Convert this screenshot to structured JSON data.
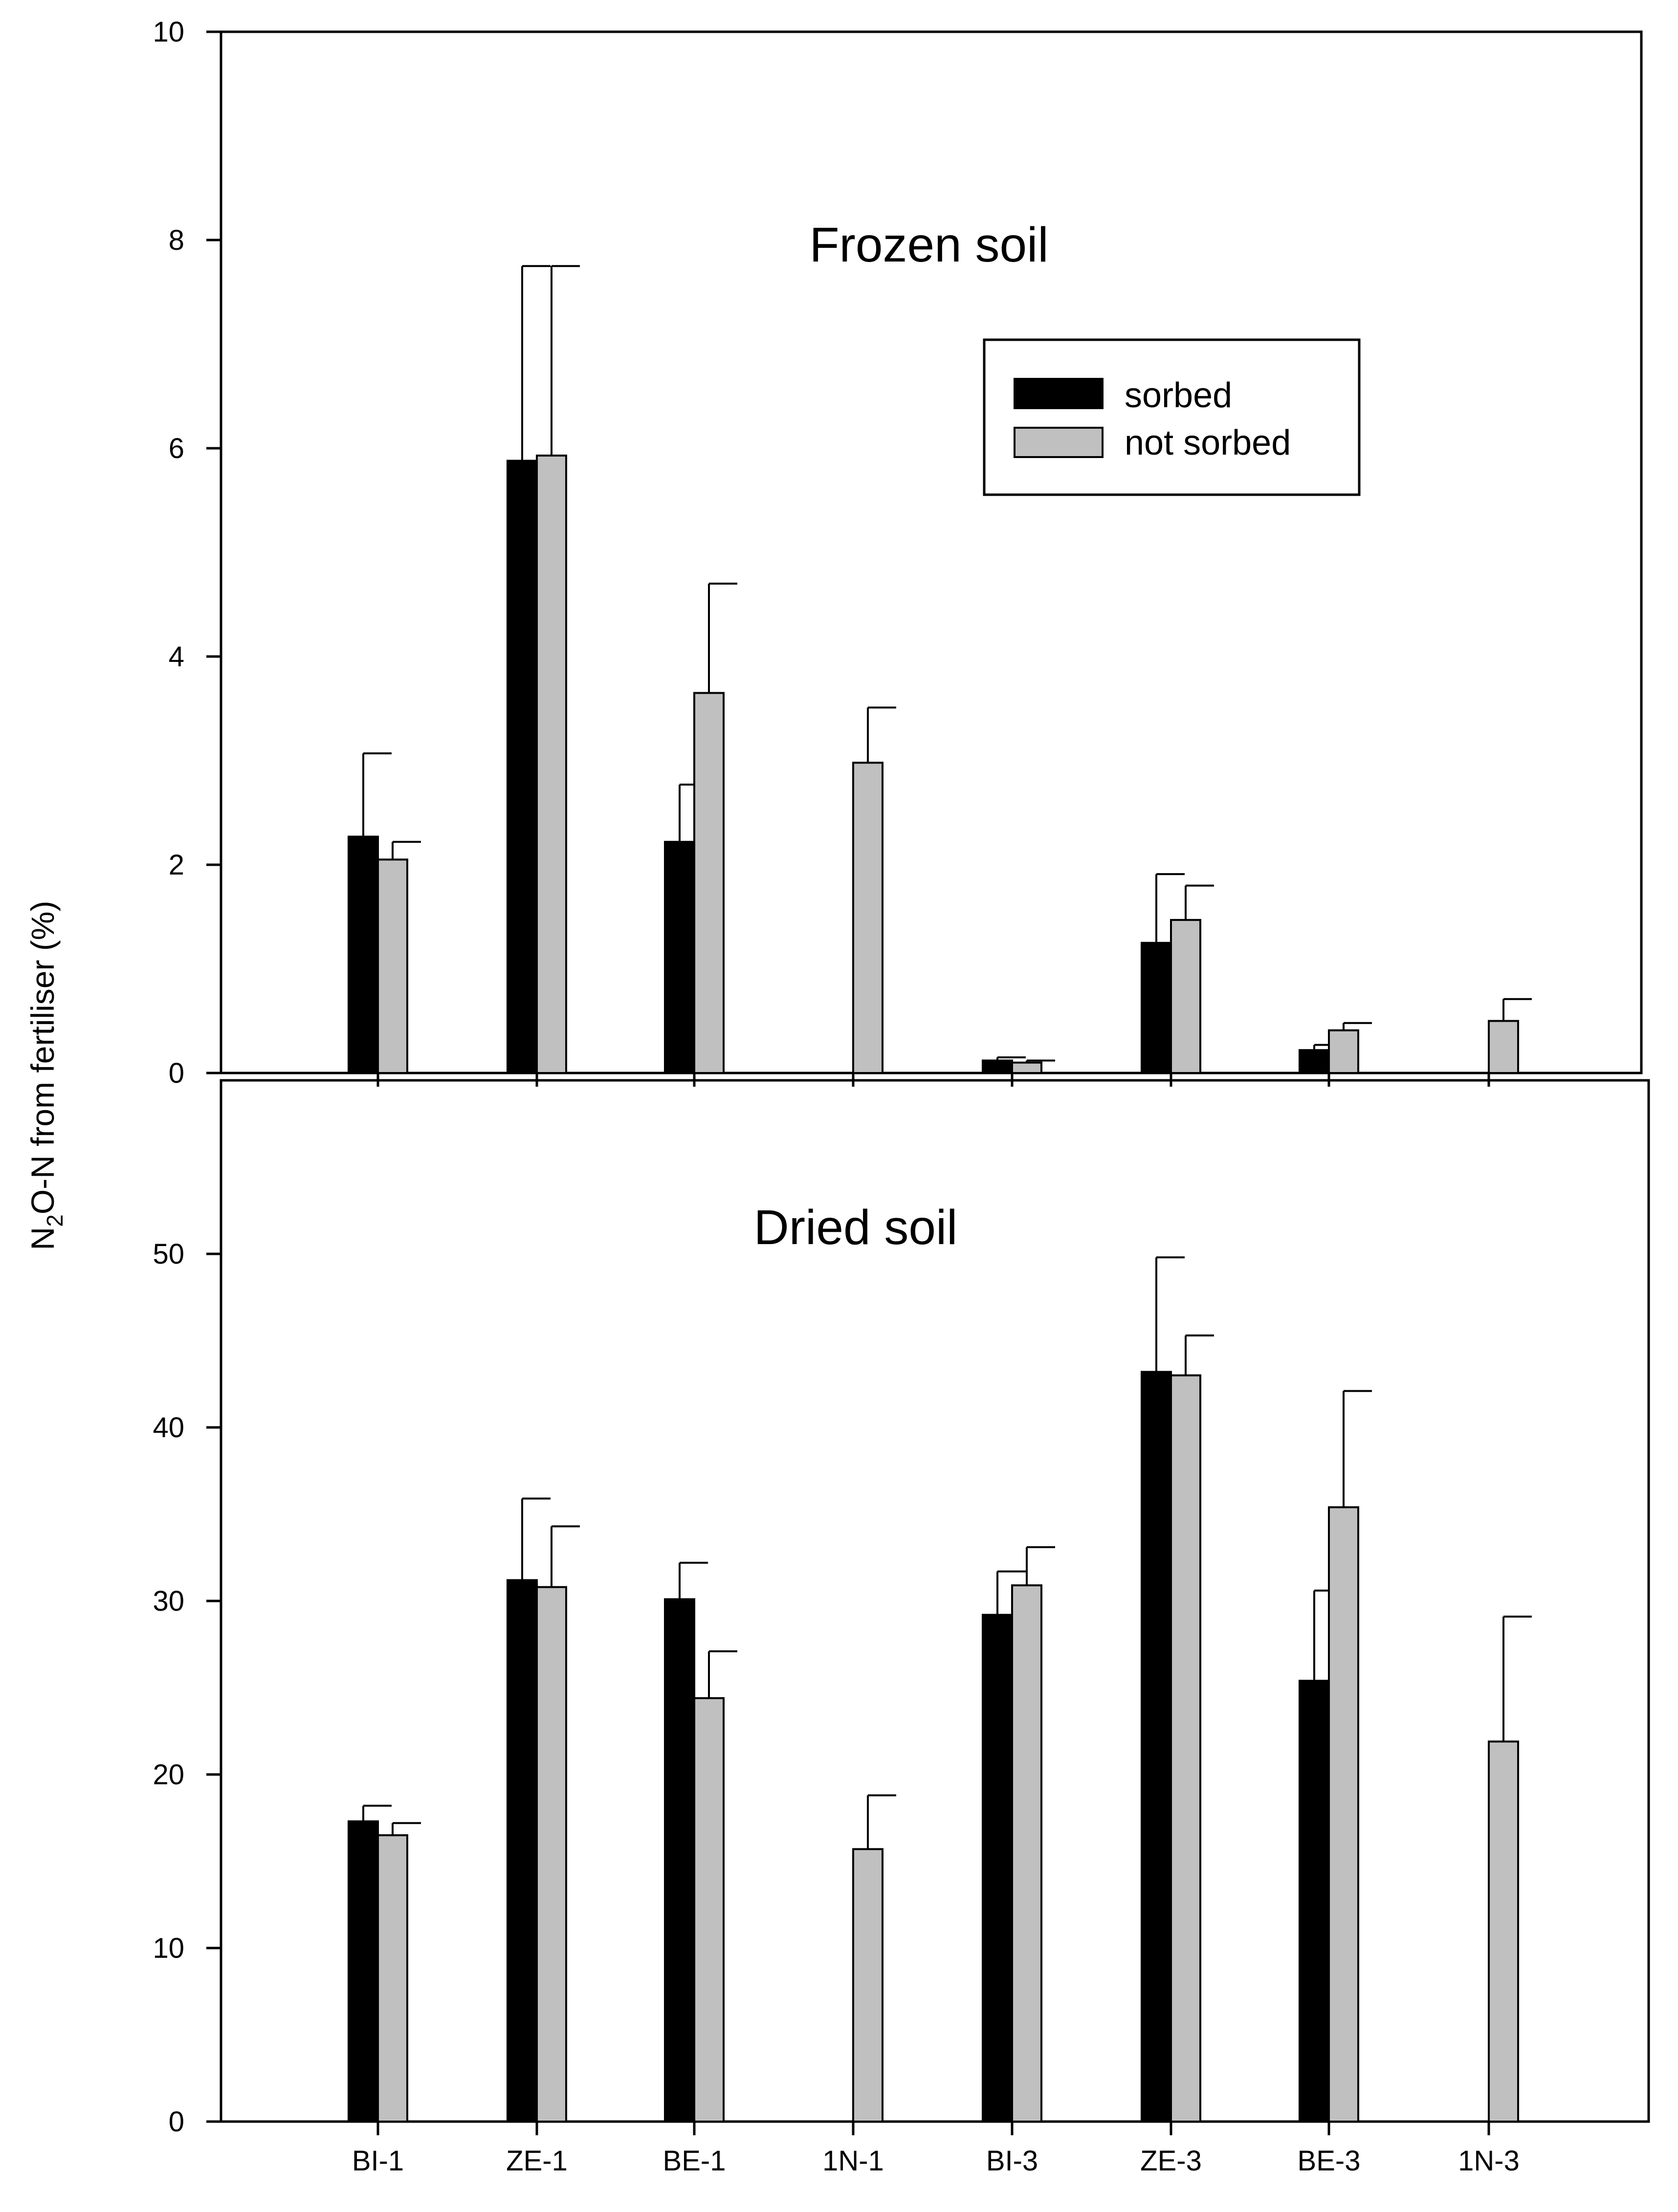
{
  "chart_data": [
    {
      "type": "bar",
      "title": "Frozen soil",
      "xlabel": "",
      "ylabel": "N2O-N from fertiliser (%)",
      "ylim": [
        0,
        10
      ],
      "yticks": [
        0,
        2,
        4,
        6,
        8,
        10
      ],
      "categories": [
        "BI-1",
        "ZE-1",
        "BE-1",
        "1N-1",
        "BI-3",
        "ZE-3",
        "BE-3",
        "1N-3"
      ],
      "series": [
        {
          "name": "sorbed",
          "color": "#000000",
          "values": [
            2.27,
            5.88,
            2.22,
            null,
            0.12,
            1.25,
            0.22,
            null
          ],
          "errors": [
            0.8,
            1.87,
            0.55,
            null,
            0.03,
            0.66,
            0.05,
            null
          ]
        },
        {
          "name": "not sorbed",
          "color": "#c0c0c0",
          "values": [
            2.05,
            5.93,
            3.65,
            2.98,
            0.1,
            1.47,
            0.41,
            0.5
          ],
          "errors": [
            0.17,
            1.82,
            1.05,
            0.53,
            0.02,
            0.33,
            0.07,
            0.21
          ]
        }
      ]
    },
    {
      "type": "bar",
      "title": "Dried soil",
      "xlabel": "",
      "ylabel": "N2O-N from fertiliser (%)",
      "ylim": [
        0,
        60
      ],
      "yticks": [
        0,
        10,
        20,
        30,
        40,
        50
      ],
      "categories": [
        "BI-1",
        "ZE-1",
        "BE-1",
        "1N-1",
        "BI-3",
        "ZE-3",
        "BE-3",
        "1N-3"
      ],
      "series": [
        {
          "name": "sorbed",
          "color": "#000000",
          "values": [
            17.3,
            31.2,
            30.1,
            null,
            29.2,
            43.2,
            25.4,
            null
          ],
          "errors": [
            0.9,
            4.7,
            2.1,
            null,
            2.5,
            6.6,
            5.2,
            null
          ]
        },
        {
          "name": "not sorbed",
          "color": "#c0c0c0",
          "values": [
            16.5,
            30.8,
            24.4,
            15.7,
            30.9,
            43.0,
            35.4,
            21.9
          ],
          "errors": [
            0.7,
            3.5,
            2.7,
            3.1,
            2.2,
            2.3,
            6.7,
            7.2
          ]
        }
      ]
    }
  ],
  "ylabel_parts": {
    "main": "N",
    "sub": "2",
    "rest": "O-N from fertiliser (%)"
  },
  "legend": {
    "items": [
      {
        "label": "sorbed",
        "color": "#000000"
      },
      {
        "label": "not sorbed",
        "color": "#c0c0c0"
      }
    ]
  }
}
